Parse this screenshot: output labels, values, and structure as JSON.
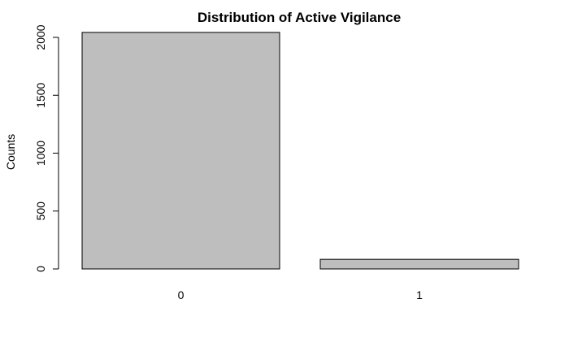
{
  "chart_data": {
    "type": "bar",
    "title": "Distribution of Active Vigilance",
    "xlabel": "",
    "ylabel": "Counts",
    "categories": [
      "0",
      "1"
    ],
    "values": [
      2043,
      83
    ],
    "ylim": [
      0,
      2000
    ],
    "yticks": [
      0,
      500,
      1000,
      1500,
      2000
    ],
    "bar_color": "#bebebe",
    "border_color": "#000000",
    "grid": false,
    "legend": "none"
  }
}
